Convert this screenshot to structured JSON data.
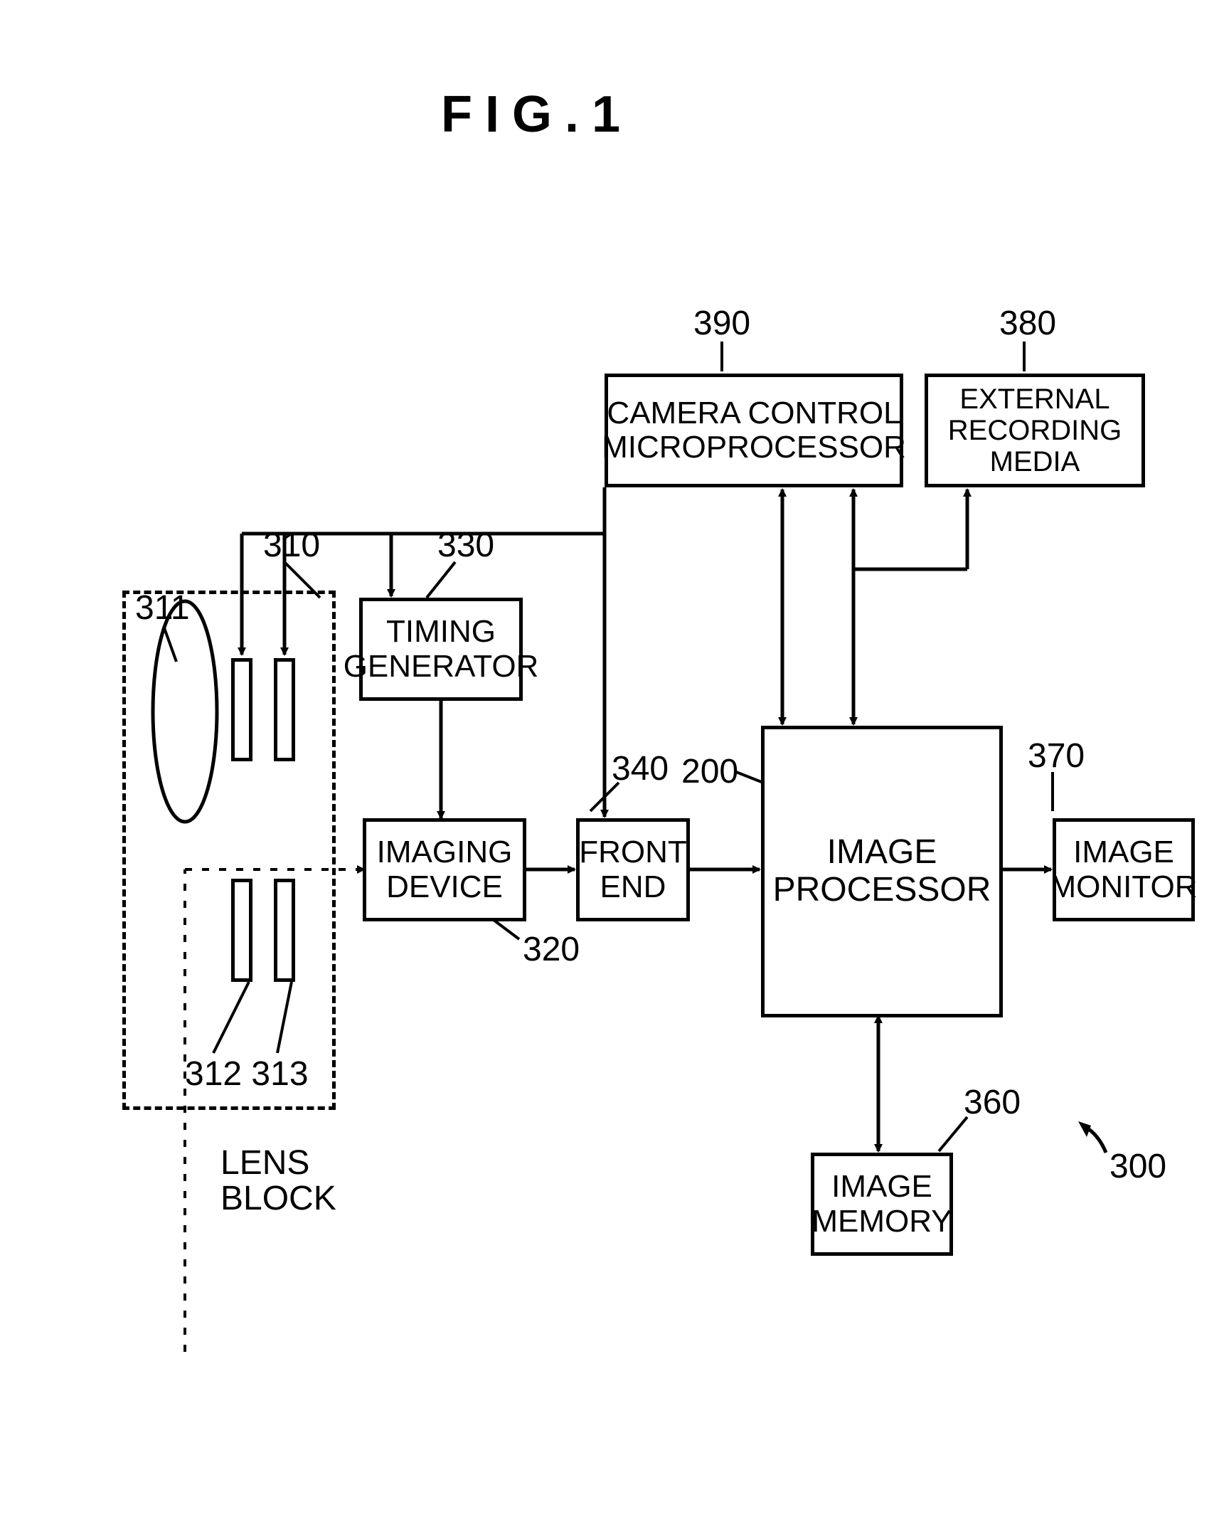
{
  "figure_title": "FIG.1",
  "system_ref": "300",
  "blocks": {
    "lens_block": {
      "label": "LENS\nBLOCK",
      "ref": "310",
      "lens_ref": "311",
      "aperture_refs": "312 313"
    },
    "timing_generator": {
      "label": "TIMING\nGENERATOR",
      "ref": "330"
    },
    "imaging_device": {
      "label": "IMAGING\nDEVICE",
      "ref": "320"
    },
    "front_end": {
      "label": "FRONT\nEND",
      "ref": "340"
    },
    "camera_control": {
      "label": "CAMERA CONTROL\nMICROPROCESSOR",
      "ref": "390"
    },
    "external_recording": {
      "label": "EXTERNAL\nRECORDING\nMEDIA",
      "ref": "380"
    },
    "image_processor": {
      "label": "IMAGE\nPROCESSOR",
      "ref": "200"
    },
    "image_monitor": {
      "label": "IMAGE\nMONITOR",
      "ref": "370"
    },
    "image_memory": {
      "label": "IMAGE\nMEMORY",
      "ref": "360"
    }
  },
  "style": {
    "stroke": "#000000",
    "stroke_width": 5,
    "arrow_head": 18
  }
}
